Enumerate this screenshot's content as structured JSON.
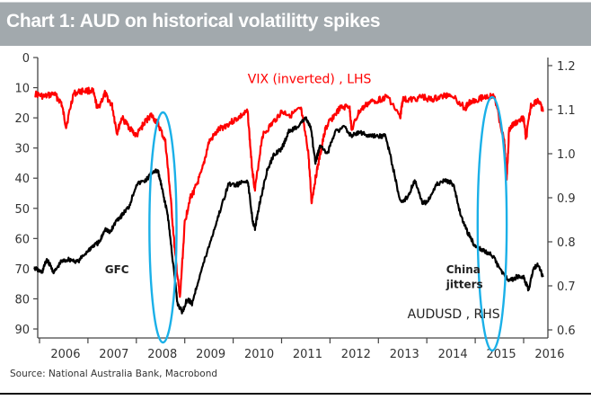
{
  "header": {
    "title": "Chart 1: AUD on historical volatilitty spikes"
  },
  "footer": {
    "source": "Source: National Australia Bank, Macrobond"
  },
  "colors": {
    "vix": "#ff0000",
    "audusd": "#000000",
    "highlight": "#1ab0e8",
    "title_bar": "#a2a9ad"
  },
  "chart_data": {
    "type": "line",
    "title": "Chart 1: AUD on historical volatilitty spikes",
    "xlabel": "",
    "x_ticks": [
      "2006",
      "2007",
      "2008",
      "2009",
      "2010",
      "2011",
      "2012",
      "2013",
      "2014",
      "2015",
      "2016"
    ],
    "xlim": [
      2005.9,
      2016.4
    ],
    "left_axis": {
      "label": "VIX (inverted) , LHS",
      "ticks": [
        "0",
        "10",
        "20",
        "30",
        "40",
        "50",
        "60",
        "70",
        "80",
        "90"
      ],
      "ylim": [
        0,
        90
      ],
      "inverted": true
    },
    "right_axis": {
      "label": "AUDUSD , RHS",
      "ticks": [
        "0.6",
        "0.7",
        "0.8",
        "0.9",
        "1.0",
        "1.1",
        "1.2"
      ],
      "ylim": [
        0.6,
        1.2
      ]
    },
    "grid": false,
    "series": [
      {
        "name": "VIX (inverted) , LHS",
        "axis": "left",
        "x": [
          2005.9,
          2006.1,
          2006.3,
          2006.45,
          2006.55,
          2006.7,
          2006.9,
          2007.1,
          2007.2,
          2007.35,
          2007.5,
          2007.6,
          2007.7,
          2007.85,
          2008.0,
          2008.15,
          2008.3,
          2008.45,
          2008.6,
          2008.7,
          2008.8,
          2008.9,
          2009.0,
          2009.1,
          2009.2,
          2009.35,
          2009.5,
          2009.7,
          2009.9,
          2010.1,
          2010.3,
          2010.38,
          2010.45,
          2010.6,
          2010.8,
          2011.0,
          2011.2,
          2011.4,
          2011.55,
          2011.62,
          2011.7,
          2011.8,
          2011.9,
          2012.0,
          2012.2,
          2012.4,
          2012.45,
          2012.6,
          2012.8,
          2013.0,
          2013.2,
          2013.45,
          2013.5,
          2013.7,
          2013.9,
          2014.1,
          2014.3,
          2014.5,
          2014.8,
          2014.85,
          2015.0,
          2015.2,
          2015.4,
          2015.6,
          2015.65,
          2015.7,
          2015.8,
          2016.0,
          2016.05,
          2016.15,
          2016.3,
          2016.4
        ],
        "values": [
          12,
          13,
          12,
          15,
          23,
          12,
          11,
          11,
          17,
          12,
          16,
          25,
          20,
          23,
          26,
          22,
          19,
          22,
          28,
          45,
          65,
          80,
          55,
          47,
          44,
          38,
          28,
          24,
          22,
          20,
          18,
          35,
          44,
          26,
          22,
          18,
          19,
          17,
          31,
          48,
          40,
          32,
          24,
          21,
          17,
          16,
          24,
          18,
          15,
          14,
          13,
          20,
          14,
          14,
          13,
          14,
          13,
          12,
          17,
          15,
          14,
          13,
          13,
          28,
          40,
          24,
          22,
          20,
          27,
          16,
          14,
          18
        ]
      },
      {
        "name": "AUDUSD , RHS",
        "axis": "right",
        "x": [
          2005.9,
          2006.05,
          2006.15,
          2006.3,
          2006.45,
          2006.6,
          2006.8,
          2007.0,
          2007.1,
          2007.25,
          2007.35,
          2007.45,
          2007.6,
          2007.7,
          2007.85,
          2008.0,
          2008.2,
          2008.35,
          2008.45,
          2008.55,
          2008.65,
          2008.75,
          2008.85,
          2008.95,
          2009.05,
          2009.15,
          2009.3,
          2009.5,
          2009.7,
          2009.9,
          2010.1,
          2010.3,
          2010.4,
          2010.45,
          2010.55,
          2010.7,
          2010.85,
          2011.0,
          2011.15,
          2011.3,
          2011.5,
          2011.6,
          2011.7,
          2011.8,
          2011.95,
          2012.1,
          2012.3,
          2012.45,
          2012.6,
          2012.8,
          2013.0,
          2013.15,
          2013.3,
          2013.45,
          2013.6,
          2013.75,
          2013.9,
          2014.0,
          2014.2,
          2014.4,
          2014.55,
          2014.7,
          2014.85,
          2015.0,
          2015.15,
          2015.35,
          2015.5,
          2015.7,
          2015.85,
          2016.0,
          2016.1,
          2016.2,
          2016.3,
          2016.4
        ],
        "values": [
          0.74,
          0.73,
          0.76,
          0.73,
          0.755,
          0.76,
          0.755,
          0.78,
          0.79,
          0.8,
          0.83,
          0.82,
          0.85,
          0.86,
          0.88,
          0.93,
          0.94,
          0.96,
          0.96,
          0.91,
          0.86,
          0.76,
          0.66,
          0.64,
          0.67,
          0.66,
          0.72,
          0.79,
          0.86,
          0.93,
          0.93,
          0.94,
          0.85,
          0.83,
          0.89,
          0.96,
          1.0,
          1.01,
          1.05,
          1.06,
          1.08,
          1.06,
          0.98,
          1.02,
          1.0,
          1.05,
          1.06,
          1.04,
          1.05,
          1.04,
          1.04,
          1.04,
          0.97,
          0.89,
          0.9,
          0.94,
          0.89,
          0.89,
          0.93,
          0.94,
          0.93,
          0.86,
          0.82,
          0.79,
          0.78,
          0.77,
          0.74,
          0.71,
          0.72,
          0.72,
          0.69,
          0.74,
          0.75,
          0.72
        ]
      }
    ],
    "annotations": [
      {
        "text": "GFC",
        "x": 2007.35,
        "y_left": 70
      },
      {
        "text": "China",
        "x": 2014.4,
        "y_left": 70
      },
      {
        "text": "jitters",
        "x": 2014.4,
        "y_left": 75
      },
      {
        "text": "VIX (inverted) , LHS",
        "x": 2010.3,
        "y_left": 7
      },
      {
        "text": "AUDUSD , RHS",
        "x": 2013.6,
        "y_left": 85
      }
    ],
    "highlights": [
      {
        "label": "GFC spike",
        "x_center": 2008.55,
        "x_halfwidth": 0.28
      },
      {
        "label": "China jitters spike",
        "x_center": 2015.35,
        "x_halfwidth": 0.3
      }
    ]
  }
}
